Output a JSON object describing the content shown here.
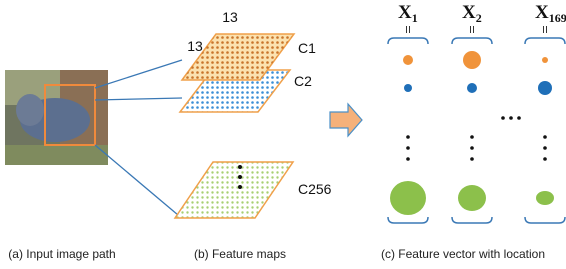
{
  "feature_maps": {
    "width_label": "13",
    "height_label": "13",
    "layers": [
      "C1",
      "C2",
      "C256"
    ]
  },
  "vectors": [
    {
      "symbol": "X",
      "index": "1"
    },
    {
      "symbol": "X",
      "index": "2"
    },
    {
      "symbol": "X",
      "index": "169"
    }
  ],
  "captions": [
    "(a) Input image path",
    "(b) Feature maps",
    "(c) Feature vector with location"
  ]
}
